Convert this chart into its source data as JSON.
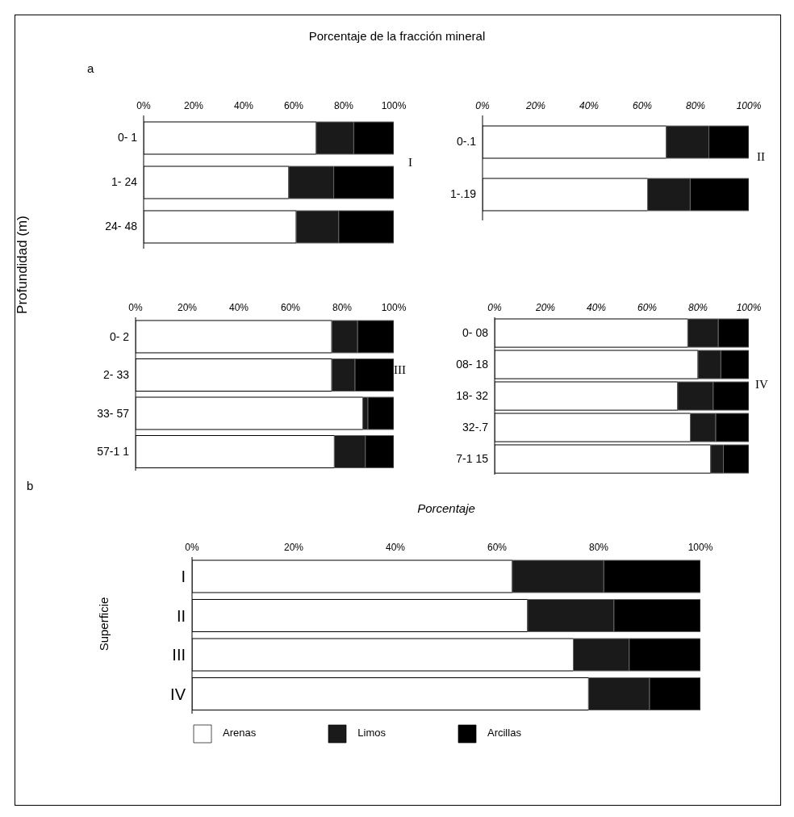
{
  "chart_data": [
    {
      "type": "bar",
      "orientation": "horizontal",
      "stacked": true,
      "title": "Porcentaje de la fracción mineral",
      "ylabel": "Profundidad (m)",
      "annotations": [
        "a",
        "I"
      ],
      "categories": [
        "0- 1",
        "1- 24",
        "24- 48"
      ],
      "series": [
        {
          "color": "#ffffff",
          "values": [
            69,
            58,
            61
          ]
        },
        {
          "color": "#1a1a1a",
          "values": [
            15,
            18,
            17
          ]
        },
        {
          "color": "#000000",
          "values": [
            16,
            24,
            22
          ]
        }
      ],
      "xlim": [
        0,
        100
      ],
      "xticks": [
        {
          "value": 0,
          "label": "0%"
        },
        {
          "value": 20,
          "label": "20%"
        },
        {
          "value": 40,
          "label": "40%"
        },
        {
          "value": 60,
          "label": "60%"
        },
        {
          "value": 80,
          "label": "80%"
        },
        {
          "value": 100,
          "label": "100%"
        }
      ]
    },
    {
      "type": "bar",
      "orientation": "horizontal",
      "stacked": true,
      "annotations": [
        "II"
      ],
      "categories": [
        "0-.1",
        "1-.19"
      ],
      "series": [
        {
          "color": "#ffffff",
          "values": [
            69,
            62
          ]
        },
        {
          "color": "#1a1a1a",
          "values": [
            16,
            16
          ]
        },
        {
          "color": "#000000",
          "values": [
            15,
            22
          ]
        }
      ],
      "xlim": [
        0,
        100
      ],
      "xticks": [
        {
          "value": 0,
          "label": "0%"
        },
        {
          "value": 20,
          "label": "20%"
        },
        {
          "value": 40,
          "label": "40%"
        },
        {
          "value": 60,
          "label": "60%"
        },
        {
          "value": 80,
          "label": "80%"
        },
        {
          "value": 100,
          "label": "100%"
        }
      ]
    },
    {
      "type": "bar",
      "orientation": "horizontal",
      "stacked": true,
      "annotations": [
        "III"
      ],
      "categories": [
        "0- 2",
        "2- 33",
        "33- 57",
        "57-1 1"
      ],
      "series": [
        {
          "color": "#ffffff",
          "values": [
            76,
            76,
            88,
            77
          ]
        },
        {
          "color": "#1a1a1a",
          "values": [
            10,
            9,
            2,
            12
          ]
        },
        {
          "color": "#000000",
          "values": [
            14,
            15,
            10,
            11
          ]
        }
      ],
      "xlim": [
        0,
        100
      ],
      "xticks": [
        {
          "value": 0,
          "label": "0%"
        },
        {
          "value": 20,
          "label": "20%"
        },
        {
          "value": 40,
          "label": "40%"
        },
        {
          "value": 60,
          "label": "60%"
        },
        {
          "value": 80,
          "label": "80%"
        },
        {
          "value": 100,
          "label": "100%"
        }
      ]
    },
    {
      "type": "bar",
      "orientation": "horizontal",
      "stacked": true,
      "annotations": [
        "IV"
      ],
      "categories": [
        "0- 08",
        "08- 18",
        "18- 32",
        "32-.7",
        "7-1 15"
      ],
      "series": [
        {
          "color": "#ffffff",
          "values": [
            76,
            80,
            72,
            77,
            85
          ]
        },
        {
          "color": "#1a1a1a",
          "values": [
            12,
            9,
            14,
            10,
            5
          ]
        },
        {
          "color": "#000000",
          "values": [
            12,
            11,
            14,
            13,
            10
          ]
        }
      ],
      "xlim": [
        0,
        100
      ],
      "xticks": [
        {
          "value": 0,
          "label": "0%"
        },
        {
          "value": 20,
          "label": "20%"
        },
        {
          "value": 40,
          "label": "40%"
        },
        {
          "value": 60,
          "label": "60%"
        },
        {
          "value": 80,
          "label": "80%"
        },
        {
          "value": 100,
          "label": "100%"
        }
      ]
    },
    {
      "type": "bar",
      "orientation": "horizontal",
      "stacked": true,
      "xlabel": "Porcentaje",
      "ylabel": "Superficie",
      "annotations": [
        "b"
      ],
      "categories": [
        "I",
        "II",
        "III",
        "IV"
      ],
      "legend": "bottom",
      "series": [
        {
          "name": "Arenas",
          "color": "#ffffff",
          "values": [
            63,
            66,
            75,
            78
          ]
        },
        {
          "name": "Limos",
          "color": "#1a1a1a",
          "values": [
            18,
            17,
            11,
            12
          ]
        },
        {
          "name": "Arcillas",
          "color": "#000000",
          "values": [
            19,
            17,
            14,
            10
          ]
        }
      ],
      "xlim": [
        0,
        100
      ],
      "xticks": [
        {
          "value": 0,
          "label": "0%"
        },
        {
          "value": 20,
          "label": "20%"
        },
        {
          "value": 40,
          "label": "40%"
        },
        {
          "value": 60,
          "label": "60%"
        },
        {
          "value": 80,
          "label": "80%"
        },
        {
          "value": 100,
          "label": "100%"
        }
      ]
    }
  ]
}
